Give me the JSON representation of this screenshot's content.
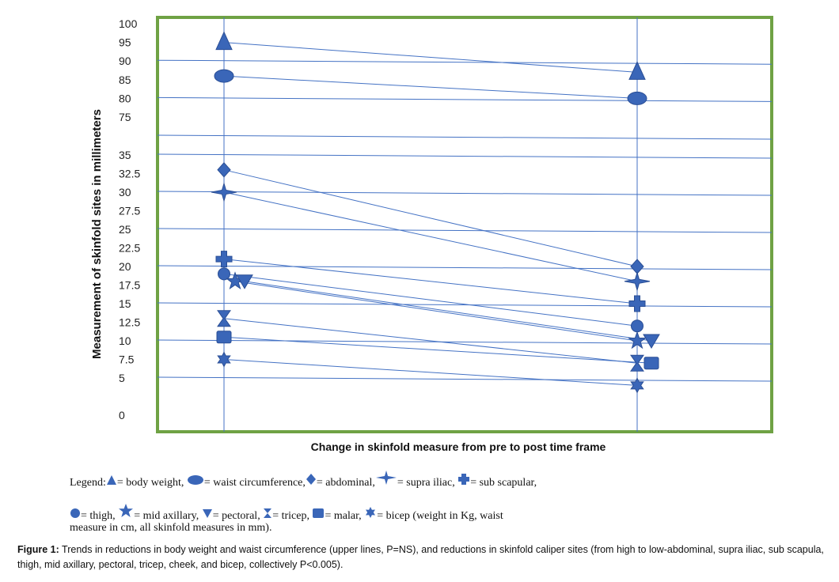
{
  "chart_data": {
    "type": "line",
    "ylabel": "Measurement of skinfold sites in millimeters",
    "xlabel": "Change in skinfold measure from pre to post time frame",
    "upper_y_ticks": [
      "100",
      "95",
      "90",
      "85",
      "80",
      "75"
    ],
    "lower_y_ticks": [
      "35",
      "32.5",
      "30",
      "27.5",
      "25",
      "22.5",
      "20",
      "17.5",
      "15",
      "12.5",
      "10",
      "7.5",
      "5",
      "0"
    ],
    "series": [
      {
        "name": "body weight",
        "symbol": "triangle",
        "values": [
          95,
          87
        ]
      },
      {
        "name": "waist circumference",
        "symbol": "ellipse",
        "values": [
          86,
          80
        ]
      },
      {
        "name": "abdominal",
        "symbol": "diamond",
        "values": [
          33,
          20
        ]
      },
      {
        "name": "supra iliac",
        "symbol": "star4",
        "values": [
          30,
          18
        ]
      },
      {
        "name": "sub scapular",
        "symbol": "plus",
        "values": [
          21,
          15
        ]
      },
      {
        "name": "thigh",
        "symbol": "circle",
        "values": [
          19,
          12
        ]
      },
      {
        "name": "mid axillary",
        "symbol": "star5",
        "values": [
          18,
          10
        ]
      },
      {
        "name": "pectoral",
        "symbol": "triangle-down",
        "values": [
          18,
          10
        ]
      },
      {
        "name": "tricep",
        "symbol": "hourglass",
        "values": [
          13,
          7
        ]
      },
      {
        "name": "malar",
        "symbol": "square",
        "values": [
          10.5,
          7
        ]
      },
      {
        "name": "bicep",
        "symbol": "star6",
        "values": [
          7.5,
          4
        ]
      }
    ],
    "frame_color": "#6fa244",
    "line_color": "#4472c4",
    "marker_color": "#3a66b8",
    "grid": true
  },
  "legend": {
    "title": "Legend:",
    "items": [
      {
        "label": "= body weight,"
      },
      {
        "label": "= waist circumference,"
      },
      {
        "label": "= abdominal,"
      },
      {
        "label": "= supra iliac,"
      },
      {
        "label": "= sub scapular,"
      },
      {
        "label": "= thigh,"
      },
      {
        "label": "= mid axillary,"
      },
      {
        "label": "= pectoral,"
      },
      {
        "label": "= tricep,"
      },
      {
        "label": "= malar,"
      },
      {
        "label": "= bicep (weight in Kg, waist"
      }
    ],
    "note": "measure in cm, all skinfold measures in mm)."
  },
  "caption": {
    "label": "Figure 1:",
    "text": " Trends in reductions in body weight and waist circumference (upper lines, P=NS), and reductions in skinfold caliper sites (from high to low-abdominal, supra iliac, sub scapula, thigh, mid axillary, pectoral, tricep, cheek, and bicep, collectively P<0.005)."
  }
}
